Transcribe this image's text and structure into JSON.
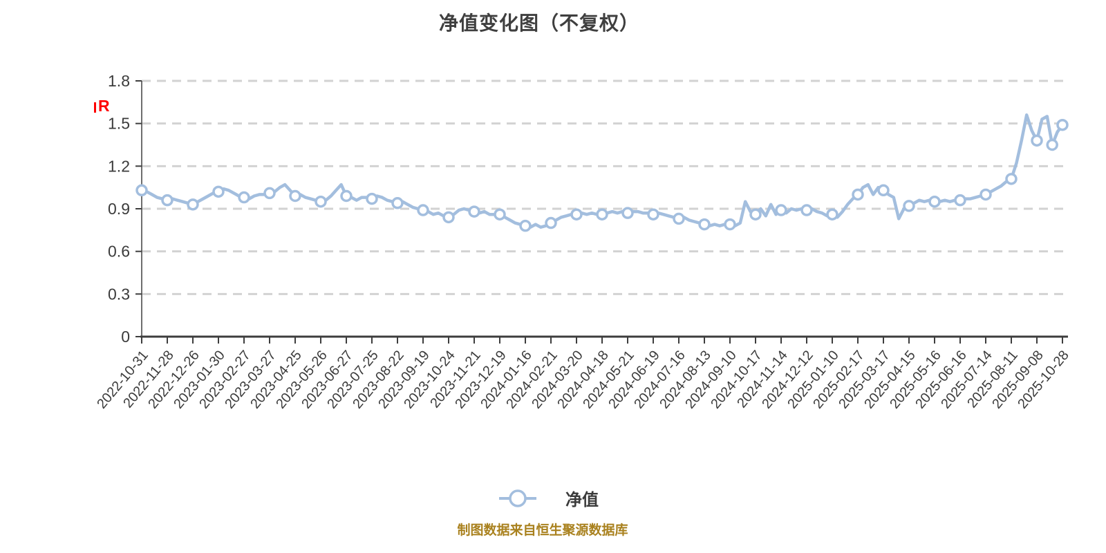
{
  "title": "净值变化图（不复权）",
  "annotation_r": "R",
  "legend": {
    "label": "净值"
  },
  "source": "制图数据来自恒生聚源数据库",
  "colors": {
    "line": "#a3bede",
    "marker_fill": "#ffffff",
    "grid": "#d2d2d2",
    "axis": "#3d3d3d",
    "spine": "#6e6e6e",
    "tick_text": "#3b3b3b",
    "title_text": "#3f3f3f",
    "source_text": "#a9811e",
    "annotation": "#fe0000"
  },
  "chart_data": {
    "type": "line",
    "title": "净值变化图（不复权）",
    "series_name": "净值",
    "legend_position": "bottom-center",
    "grid": "horizontal-dashed",
    "ylim": [
      0,
      1.8
    ],
    "yticks": [
      0,
      0.3,
      0.6,
      0.9,
      1.2,
      1.5,
      1.8
    ],
    "categories": [
      "2022-10-31",
      "2022-11-28",
      "2022-12-26",
      "2023-01-30",
      "2023-02-27",
      "2023-03-27",
      "2023-04-25",
      "2023-05-26",
      "2023-06-27",
      "2023-07-25",
      "2023-08-22",
      "2023-09-19",
      "2023-10-24",
      "2023-11-21",
      "2023-12-19",
      "2024-01-16",
      "2024-02-21",
      "2024-03-20",
      "2024-04-18",
      "2024-05-21",
      "2024-06-19",
      "2024-07-16",
      "2024-08-13",
      "2024-09-10",
      "2024-10-17",
      "2024-11-14",
      "2024-12-12",
      "2025-01-10",
      "2025-02-17",
      "2025-03-17",
      "2025-04-15",
      "2025-05-16",
      "2025-06-16",
      "2025-07-14",
      "2025-08-11",
      "2025-09-08",
      "2025-10-28"
    ],
    "marker_values": [
      1.03,
      0.96,
      0.93,
      1.02,
      0.98,
      1.01,
      0.99,
      0.95,
      0.99,
      0.97,
      0.94,
      0.89,
      0.84,
      0.88,
      0.86,
      0.78,
      0.8,
      0.86,
      0.86,
      0.87,
      0.86,
      0.83,
      0.79,
      0.79,
      0.86,
      0.89,
      0.89,
      0.86,
      1.0,
      1.03,
      0.92,
      0.95,
      0.96,
      1.0,
      1.11,
      1.38,
      1.49
    ],
    "extra_marker": {
      "index": 178,
      "value": 1.35
    },
    "points_per_tick": 5,
    "line_values": [
      1.03,
      1.02,
      1.0,
      0.98,
      0.97,
      0.96,
      0.97,
      0.96,
      0.95,
      0.94,
      0.93,
      0.95,
      0.97,
      0.99,
      1.01,
      1.02,
      1.04,
      1.03,
      1.01,
      0.99,
      0.98,
      0.97,
      0.99,
      1.0,
      1.0,
      1.01,
      1.02,
      1.05,
      1.07,
      1.03,
      0.99,
      1.0,
      0.98,
      0.97,
      0.96,
      0.95,
      0.96,
      0.99,
      1.03,
      1.07,
      0.99,
      0.98,
      0.96,
      0.98,
      0.98,
      0.97,
      0.99,
      0.98,
      0.96,
      0.95,
      0.94,
      0.95,
      0.93,
      0.91,
      0.9,
      0.89,
      0.88,
      0.86,
      0.87,
      0.85,
      0.84,
      0.86,
      0.89,
      0.9,
      0.89,
      0.88,
      0.87,
      0.88,
      0.86,
      0.86,
      0.86,
      0.84,
      0.82,
      0.8,
      0.79,
      0.78,
      0.77,
      0.79,
      0.77,
      0.78,
      0.8,
      0.82,
      0.84,
      0.85,
      0.86,
      0.86,
      0.87,
      0.86,
      0.87,
      0.86,
      0.86,
      0.87,
      0.88,
      0.87,
      0.88,
      0.87,
      0.88,
      0.88,
      0.87,
      0.87,
      0.86,
      0.87,
      0.86,
      0.85,
      0.84,
      0.83,
      0.84,
      0.82,
      0.81,
      0.8,
      0.79,
      0.78,
      0.79,
      0.78,
      0.79,
      0.79,
      0.78,
      0.8,
      0.95,
      0.88,
      0.86,
      0.9,
      0.85,
      0.93,
      0.86,
      0.89,
      0.87,
      0.9,
      0.89,
      0.9,
      0.89,
      0.9,
      0.88,
      0.87,
      0.85,
      0.86,
      0.84,
      0.88,
      0.93,
      0.97,
      1.0,
      1.05,
      1.07,
      1.0,
      1.05,
      1.03,
      1.0,
      0.98,
      0.83,
      0.9,
      0.92,
      0.94,
      0.96,
      0.95,
      0.96,
      0.95,
      0.95,
      0.96,
      0.95,
      0.96,
      0.96,
      0.97,
      0.97,
      0.98,
      0.99,
      1.0,
      1.02,
      1.04,
      1.06,
      1.09,
      1.11,
      1.22,
      1.38,
      1.56,
      1.45,
      1.38,
      1.53,
      1.55,
      1.35,
      1.44,
      1.49
    ]
  }
}
